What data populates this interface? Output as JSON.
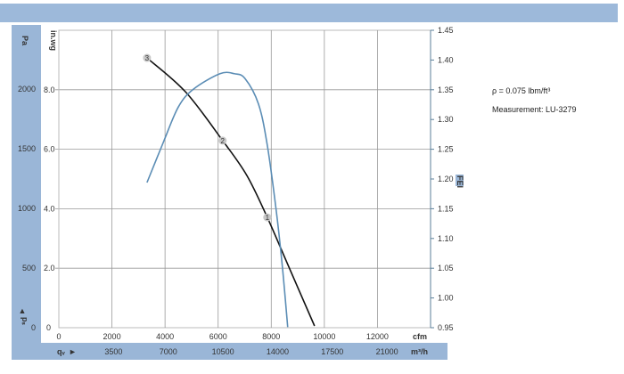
{
  "header_bar_color": "#9db9da",
  "panel_color": "#9ab6d7",
  "chart_data": {
    "type": "line",
    "x_axis": {
      "label": "cfm",
      "range": [
        0,
        14000
      ],
      "ticks": [
        0,
        2000,
        4000,
        6000,
        8000,
        10000,
        12000
      ]
    },
    "x2_axis": {
      "symbol": "qᵥ",
      "arrow": "►",
      "label": "m³/h",
      "ticks": [
        3500,
        7000,
        10500,
        14000,
        17500,
        21000
      ]
    },
    "y_axis": {
      "label": "in.wg",
      "range": [
        0,
        10
      ],
      "ticks": [
        "0",
        "2.0",
        "4.0",
        "6.0",
        "8.0"
      ]
    },
    "y_pa_axis": {
      "label": "Pa",
      "symbol": "pₛ",
      "arrow": "▲",
      "ticks": [
        0,
        500,
        1000,
        1500,
        2000
      ]
    },
    "y2_axis": {
      "label": "FEI",
      "range": [
        0.95,
        1.45
      ],
      "ticks": [
        "0.95",
        "1.00",
        "1.05",
        "1.10",
        "1.15",
        "1.20",
        "1.25",
        "1.30",
        "1.35",
        "1.40",
        "1.45"
      ]
    },
    "grid": true,
    "series": [
      {
        "axis": "in.wg",
        "color": "#111111",
        "x": [
          3320,
          4770,
          6170,
          7080,
          7850,
          8620,
          9630
        ],
        "y": [
          9.07,
          7.93,
          6.29,
          5.12,
          3.71,
          2.13,
          0.06
        ]
      },
      {
        "axis": "FEI",
        "color": "#5b8db5",
        "x": [
          3320,
          3930,
          4500,
          5070,
          6070,
          6610,
          7010,
          7520,
          7850,
          8190,
          8420,
          8620
        ],
        "y": [
          1.194,
          1.261,
          1.321,
          1.351,
          1.377,
          1.377,
          1.369,
          1.326,
          1.257,
          1.146,
          1.052,
          0.951
        ]
      }
    ],
    "operating_points": [
      {
        "label": "3",
        "x": 3320,
        "y": 9.07
      },
      {
        "label": "2",
        "x": 6170,
        "y": 6.29
      },
      {
        "label": "1",
        "x": 7850,
        "y": 3.71
      }
    ]
  },
  "notes": {
    "density": "ρ = 0.075 lbm/ft³",
    "measurement": "Measurement: LU-3279"
  }
}
